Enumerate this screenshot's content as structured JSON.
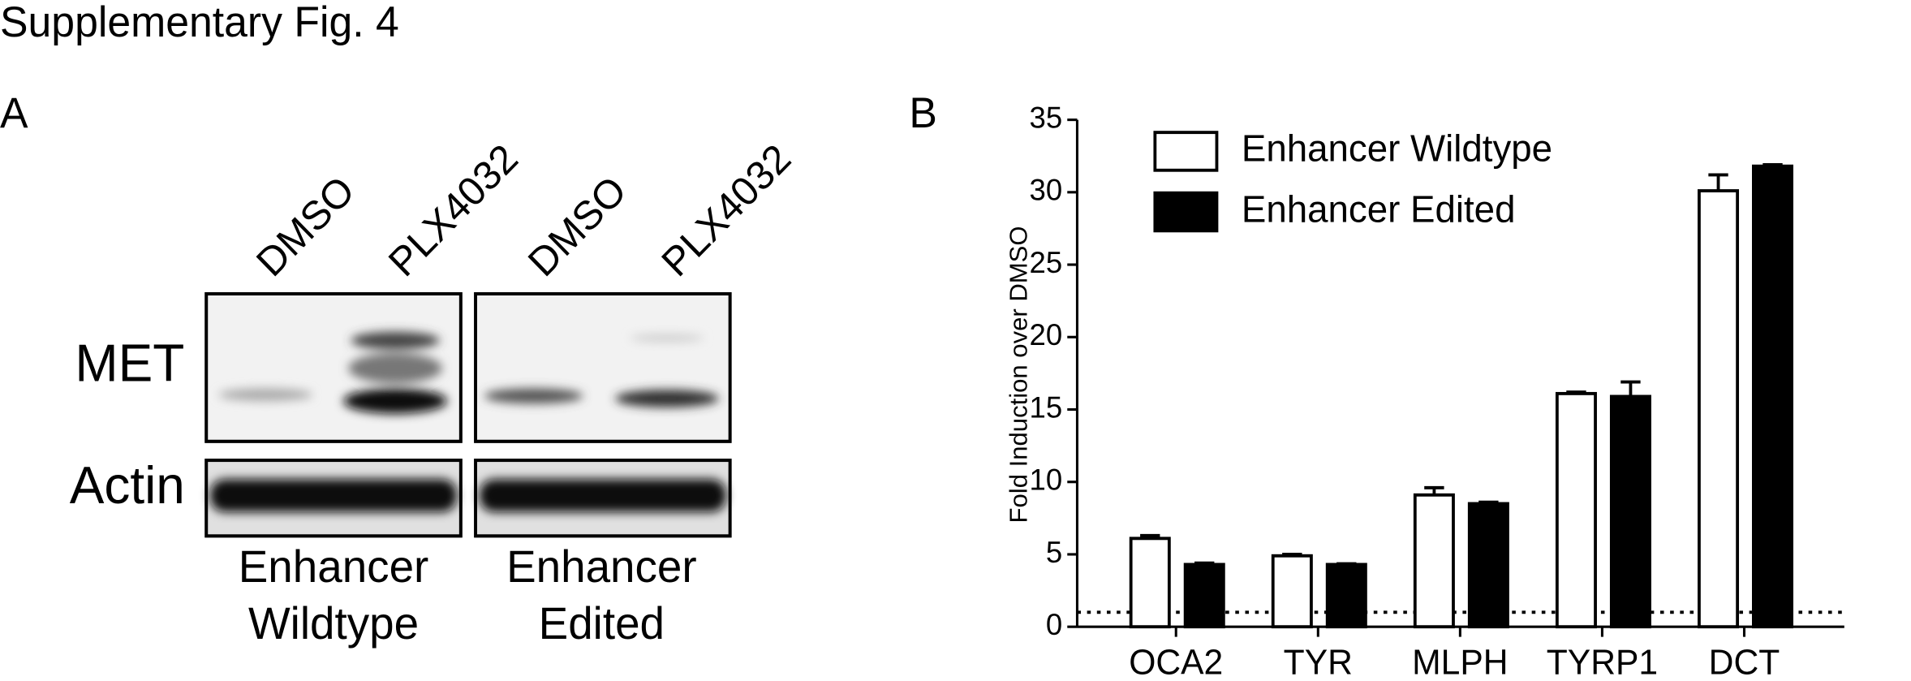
{
  "title": "Supplementary Fig. 4",
  "panel_a": {
    "label": "A",
    "lanes": [
      "DMSO",
      "PLX4032",
      "DMSO",
      "PLX4032"
    ],
    "rows": [
      "MET",
      "Actin"
    ],
    "groups": [
      [
        "Enhancer",
        "Wildtype"
      ],
      [
        "Enhancer",
        "Edited"
      ]
    ]
  },
  "chart_data": {
    "type": "bar",
    "label": "B",
    "ylabel": "Fold Induction over DMSO",
    "categories": [
      "OCA2",
      "TYR",
      "MLPH",
      "TYRP1",
      "DCT"
    ],
    "series": [
      {
        "name": "Enhancer Wildtype",
        "color": "#ffffff",
        "values": [
          6.1,
          4.9,
          9.1,
          16.1,
          30.1
        ],
        "errors": [
          0.2,
          0.1,
          0.5,
          0.1,
          1.1
        ]
      },
      {
        "name": "Enhancer Edited",
        "color": "#000000",
        "values": [
          4.3,
          4.3,
          8.5,
          15.9,
          31.8
        ],
        "errors": [
          0.1,
          0.05,
          0.1,
          1.0,
          0.1
        ]
      }
    ],
    "ylim": [
      0,
      35
    ],
    "yticks": [
      0,
      5,
      10,
      15,
      20,
      25,
      30,
      35
    ],
    "reference_line": 1,
    "legend": "upper left"
  }
}
